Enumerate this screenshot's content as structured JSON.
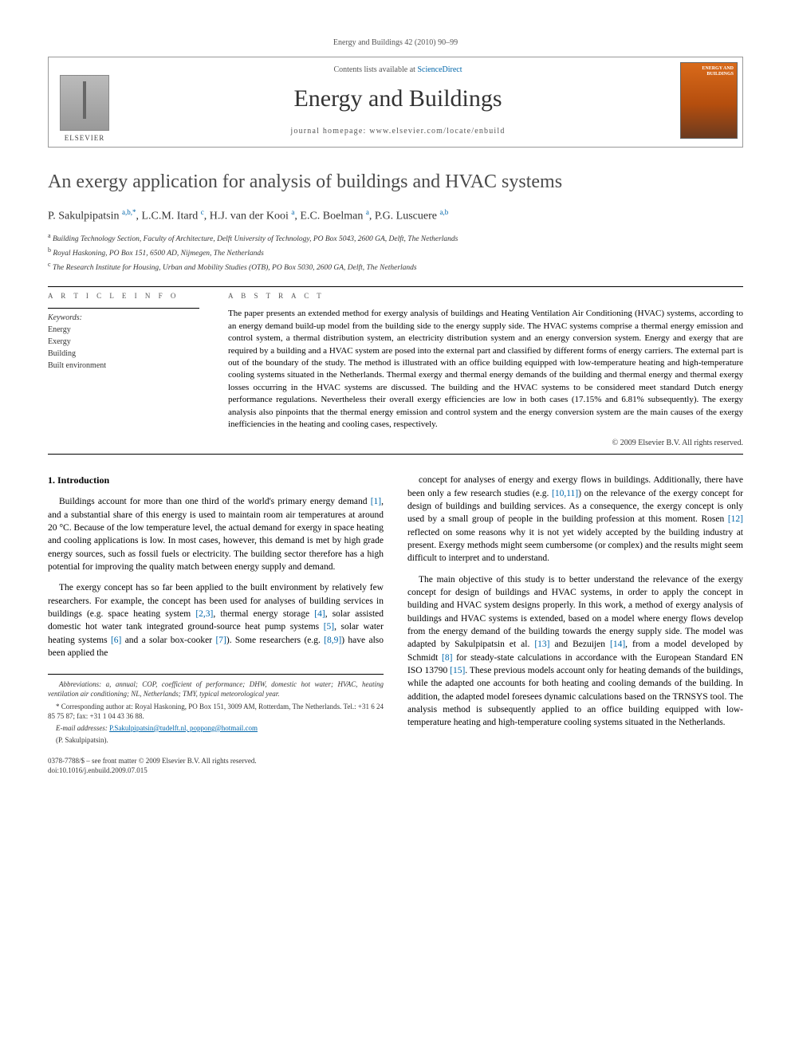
{
  "running_header": "Energy and Buildings 42 (2010) 90–99",
  "masthead": {
    "contents_prefix": "Contents lists available at ",
    "contents_link": "ScienceDirect",
    "journal_name": "Energy and Buildings",
    "homepage_label": "journal homepage: www.elsevier.com/locate/enbuild",
    "elsevier_label": "ELSEVIER",
    "cover_title": "ENERGY AND BUILDINGS"
  },
  "title": "An exergy application for analysis of buildings and HVAC systems",
  "authors_html": "P. Sakulpipatsin <sup>a,b,*</sup>, L.C.M. Itard <sup>c</sup>, H.J. van der Kooi <sup>a</sup>, E.C. Boelman <sup>a</sup>, P.G. Luscuere <sup>a,b</sup>",
  "affiliations": {
    "a": "Building Technology Section, Faculty of Architecture, Delft University of Technology, PO Box 5043, 2600 GA, Delft, The Netherlands",
    "b": "Royal Haskoning, PO Box 151, 6500 AD, Nijmegen, The Netherlands",
    "c": "The Research Institute for Housing, Urban and Mobility Studies (OTB), PO Box 5030, 2600 GA, Delft, The Netherlands"
  },
  "article_info": {
    "heading": "A R T I C L E   I N F O",
    "keywords_label": "Keywords:",
    "keywords": [
      "Energy",
      "Exergy",
      "Building",
      "Built environment"
    ]
  },
  "abstract": {
    "heading": "A B S T R A C T",
    "text": "The paper presents an extended method for exergy analysis of buildings and Heating Ventilation Air Conditioning (HVAC) systems, according to an energy demand build-up model from the building side to the energy supply side. The HVAC systems comprise a thermal energy emission and control system, a thermal distribution system, an electricity distribution system and an energy conversion system. Energy and exergy that are required by a building and a HVAC system are posed into the external part and classified by different forms of energy carriers. The external part is out of the boundary of the study. The method is illustrated with an office building equipped with low-temperature heating and high-temperature cooling systems situated in the Netherlands. Thermal exergy and thermal energy demands of the building and thermal energy and thermal exergy losses occurring in the HVAC systems are discussed. The building and the HVAC systems to be considered meet standard Dutch energy performance regulations. Nevertheless their overall exergy efficiencies are low in both cases (17.15% and 6.81% subsequently). The exergy analysis also pinpoints that the thermal energy emission and control system and the energy conversion system are the main causes of the exergy inefficiencies in the heating and cooling cases, respectively.",
    "copyright": "© 2009 Elsevier B.V. All rights reserved."
  },
  "body": {
    "section1_heading": "1. Introduction",
    "left_paras": [
      "Buildings account for more than one third of the world's primary energy demand [1], and a substantial share of this energy is used to maintain room air temperatures at around 20 °C. Because of the low temperature level, the actual demand for exergy in space heating and cooling applications is low. In most cases, however, this demand is met by high grade energy sources, such as fossil fuels or electricity. The building sector therefore has a high potential for improving the quality match between energy supply and demand.",
      "The exergy concept has so far been applied to the built environment by relatively few researchers. For example, the concept has been used for analyses of building services in buildings (e.g. space heating system [2,3], thermal energy storage [4], solar assisted domestic hot water tank integrated ground-source heat pump systems [5], solar water heating systems [6] and a solar box-cooker [7]). Some researchers (e.g. [8,9]) have also been applied the"
    ],
    "right_paras": [
      "concept for analyses of energy and exergy flows in buildings. Additionally, there have been only a few research studies (e.g. [10,11]) on the relevance of the exergy concept for design of buildings and building services. As a consequence, the exergy concept is only used by a small group of people in the building profession at this moment. Rosen [12] reflected on some reasons why it is not yet widely accepted by the building industry at present. Exergy methods might seem cumbersome (or complex) and the results might seem difficult to interpret and to understand.",
      "The main objective of this study is to better understand the relevance of the exergy concept for design of buildings and HVAC systems, in order to apply the concept in building and HVAC system designs properly. In this work, a method of exergy analysis of buildings and HVAC systems is extended, based on a model where energy flows develop from the energy demand of the building towards the energy supply side. The model was adapted by Sakulpipatsin et al. [13] and Bezuijen [14], from a model developed by Schmidt [8] for steady-state calculations in accordance with the European Standard EN ISO 13790 [15]. These previous models account only for heating demands of the buildings, while the adapted one accounts for both heating and cooling demands of the building. In addition, the adapted model foresees dynamic calculations based on the TRNSYS tool. The analysis method is subsequently applied to an office building equipped with low-temperature heating and high-temperature cooling systems situated in the Netherlands."
    ]
  },
  "footnotes": {
    "abbrev": "Abbreviations: a, annual; COP, coefficient of performance; DHW, domestic hot water; HVAC, heating ventilation air conditioning; NL, Netherlands; TMY, typical meteorological year.",
    "corresponding": "* Corresponding author at: Royal Haskoning, PO Box 151, 3009 AM, Rotterdam, The Netherlands. Tel.: +31 6 24 85 75 87; fax: +31 1 04 43 36 88.",
    "emails_label": "E-mail addresses:",
    "emails": "P.Sakulpipatsin@tudelft.nl, poppong@hotmail.com",
    "email_author": "(P. Sakulpipatsin)."
  },
  "footer": {
    "line1": "0378-7788/$ – see front matter © 2009 Elsevier B.V. All rights reserved.",
    "line2": "doi:10.1016/j.enbuild.2009.07.015"
  },
  "colors": {
    "link": "#0066aa",
    "text": "#000000",
    "muted": "#555555",
    "cover_top": "#d96a1a",
    "cover_bottom": "#6b3a1f"
  },
  "typography": {
    "title_fontsize_pt": 18,
    "journal_fontsize_pt": 22,
    "body_fontsize_pt": 9,
    "abstract_fontsize_pt": 8.5,
    "font_family": "Georgia, Times New Roman, serif"
  }
}
